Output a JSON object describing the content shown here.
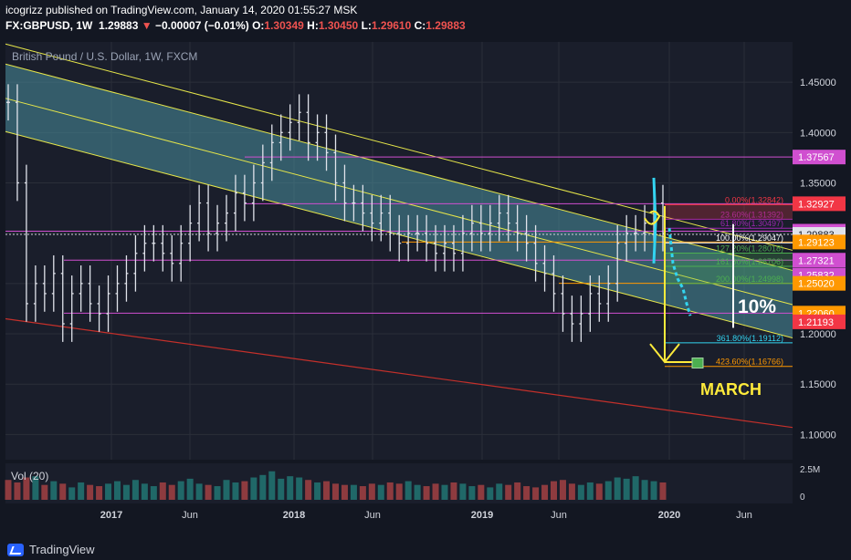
{
  "header": {
    "published_line": "icogrizz published on TradingView.com, January 14, 2020 01:55:27 MSK",
    "symbol": "FX:GBPUSD, 1W",
    "last": "1.29883",
    "change": "−0.00007 (−0.01%)",
    "o_label": "O:",
    "o": "1.30349",
    "h_label": "H:",
    "h": "1.30450",
    "l_label": "L:",
    "l": "1.29610",
    "c_label": "C:",
    "c": "1.29883"
  },
  "chart_title": "British Pound / U.S. Dollar, 1W, FXCM",
  "volume_label": "Vol (20)",
  "footer_brand": "TradingView",
  "annotations": {
    "percent": "10%",
    "month": "MARCH"
  },
  "colors": {
    "background": "#131722",
    "channel_fill": "#4a8f9f",
    "channel_line": "#e6e64a",
    "support": "#c4302b",
    "magenta": "#d04fd0",
    "orange": "#ff9800",
    "yellow": "#ffeb3b",
    "cyan": "#33d4f0"
  },
  "chart_data": {
    "type": "line",
    "ylim": [
      1.075,
      1.49
    ],
    "x_ticks": [
      "2017",
      "Jun",
      "2018",
      "Jun",
      "2019",
      "Jun",
      "2020",
      "Jun"
    ],
    "y_ticks": [
      "1.45000",
      "1.40000",
      "1.35000",
      "1.30000",
      "1.25000",
      "1.20000",
      "1.15000",
      "1.10000"
    ],
    "volume_ticks": [
      "2.5M",
      "0"
    ],
    "series": [
      {
        "values": [
          1.43,
          1.35,
          1.23,
          1.25,
          1.24,
          1.26,
          1.21,
          1.24,
          1.25,
          1.23,
          1.22,
          1.24,
          1.25,
          1.26,
          1.28,
          1.29,
          1.29,
          1.28,
          1.27,
          1.29,
          1.31,
          1.33,
          1.3,
          1.31,
          1.32,
          1.34,
          1.33,
          1.35,
          1.37,
          1.39,
          1.4,
          1.41,
          1.42,
          1.39,
          1.4,
          1.38,
          1.35,
          1.33,
          1.33,
          1.32,
          1.31,
          1.32,
          1.3,
          1.29,
          1.3,
          1.3,
          1.29,
          1.28,
          1.29,
          1.28,
          1.3,
          1.31,
          1.3,
          1.31,
          1.32,
          1.31,
          1.3,
          1.29,
          1.27,
          1.26,
          1.24,
          1.22,
          1.21,
          1.22,
          1.24,
          1.23,
          1.25,
          1.29,
          1.3,
          1.3,
          1.31,
          1.33,
          1.3
        ]
      }
    ],
    "horizontal_levels": [
      "1.37567",
      "1.32927",
      "1.30199",
      "1.29883",
      "1.29123",
      "1.27321",
      "1.25832",
      "1.25020",
      "1.22060",
      "1.21193"
    ],
    "fibonacci_labels": [
      "0.00%(1.32842)",
      "23.60%(1.31392)",
      "61.80%(1.30497)",
      "100.00%(1.29047)",
      "127.20%(1.28018)",
      "161.80%(1.26706)",
      "200.00%(1.24998)",
      "361.80%(1.19112)",
      "423.60%(1.16766)"
    ],
    "volume": [
      1.6,
      1.4,
      1.8,
      1.9,
      1.2,
      1.5,
      1.3,
      1.0,
      1.4,
      1.2,
      1.1,
      1.3,
      1.5,
      1.2,
      1.6,
      1.3,
      1.1,
      1.4,
      1.2,
      1.5,
      1.7,
      1.3,
      1.2,
      1.1,
      1.6,
      1.4,
      1.5,
      1.8,
      2.0,
      2.3,
      1.7,
      1.9,
      1.8,
      1.6,
      1.4,
      1.5,
      1.3,
      1.2,
      1.2,
      1.1,
      1.3,
      1.2,
      1.4,
      1.3,
      1.5,
      1.2,
      1.1,
      1.3,
      1.2,
      1.4,
      1.3,
      1.1,
      1.2,
      1.0,
      1.3,
      1.2,
      1.4,
      1.1,
      1.0,
      1.2,
      1.5,
      1.6,
      1.3,
      1.2,
      1.4,
      1.3,
      1.5,
      1.8,
      1.7,
      1.9,
      1.6,
      1.5,
      1.4
    ]
  }
}
